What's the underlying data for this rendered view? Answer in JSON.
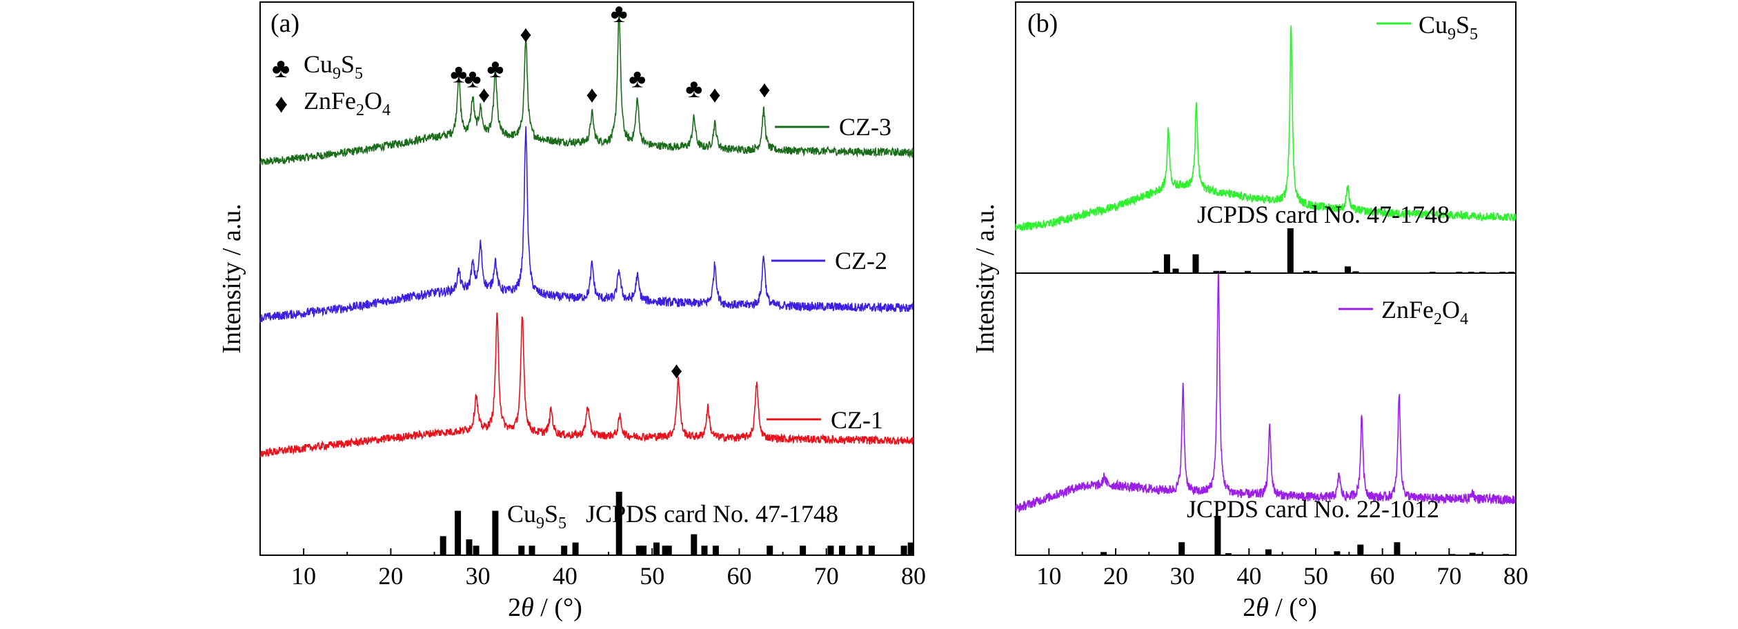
{
  "chart_data": [
    {
      "panel_label": "(a)",
      "type": "line",
      "xlabel": "2θ / (°)",
      "ylabel": "Intensity / a.u.",
      "xlim": [
        5,
        80
      ],
      "xticks": [
        10,
        20,
        30,
        40,
        50,
        60,
        70,
        80
      ],
      "yticks_shown": false,
      "symbol_legend": [
        {
          "symbol": "♣",
          "label": "Cu9S5",
          "sub": "9,5"
        },
        {
          "symbol": "♦",
          "label": "ZnFe2O4",
          "sub": "2,4"
        }
      ],
      "series": [
        {
          "name": "CZ-3",
          "color": "#1a6b1a",
          "offset": 0.68,
          "noise": 0.008,
          "baseline": [
            [
              5,
              0.0
            ],
            [
              15,
              0.02
            ],
            [
              25,
              0.05
            ],
            [
              30,
              0.055
            ],
            [
              40,
              0.04
            ],
            [
              60,
              0.025
            ],
            [
              80,
              0.02
            ]
          ],
          "peaks": [
            [
              27.8,
              0.12
            ],
            [
              29.4,
              0.07
            ],
            [
              30.3,
              0.05
            ],
            [
              32.0,
              0.13
            ],
            [
              35.5,
              0.2
            ],
            [
              43.1,
              0.06
            ],
            [
              46.2,
              0.26
            ],
            [
              48.3,
              0.09
            ],
            [
              54.8,
              0.06
            ],
            [
              57.2,
              0.05
            ],
            [
              62.8,
              0.08
            ]
          ]
        },
        {
          "name": "CZ-2",
          "color": "#3d1ee0",
          "offset": 0.37,
          "noise": 0.009,
          "baseline": [
            [
              5,
              0.0
            ],
            [
              15,
              0.02
            ],
            [
              25,
              0.05
            ],
            [
              30,
              0.055
            ],
            [
              40,
              0.04
            ],
            [
              60,
              0.025
            ],
            [
              80,
              0.02
            ]
          ],
          "peaks": [
            [
              27.8,
              0.04
            ],
            [
              29.4,
              0.05
            ],
            [
              30.3,
              0.09
            ],
            [
              32.0,
              0.06
            ],
            [
              35.5,
              0.33
            ],
            [
              43.1,
              0.07
            ],
            [
              46.2,
              0.06
            ],
            [
              48.3,
              0.05
            ],
            [
              57.2,
              0.08
            ],
            [
              62.8,
              0.1
            ]
          ]
        },
        {
          "name": "CZ-1",
          "color": "#e8101a",
          "offset": 0.1,
          "noise": 0.008,
          "baseline": [
            [
              5,
              0.0
            ],
            [
              15,
              0.02
            ],
            [
              25,
              0.04
            ],
            [
              30,
              0.045
            ],
            [
              40,
              0.035
            ],
            [
              60,
              0.03
            ],
            [
              80,
              0.025
            ]
          ],
          "peaks": [
            [
              29.8,
              0.07
            ],
            [
              32.2,
              0.23
            ],
            [
              35.1,
              0.23
            ],
            [
              38.4,
              0.05
            ],
            [
              42.6,
              0.06
            ],
            [
              46.3,
              0.04
            ],
            [
              53.0,
              0.12
            ],
            [
              56.4,
              0.06
            ],
            [
              62.0,
              0.11
            ]
          ]
        }
      ],
      "markers": [
        {
          "x": 27.8,
          "y": 0.84,
          "symbol": "♣"
        },
        {
          "x": 29.4,
          "y": 0.83,
          "symbol": "♣"
        },
        {
          "x": 30.7,
          "y": 0.8,
          "symbol": "♦"
        },
        {
          "x": 32.0,
          "y": 0.85,
          "symbol": "♣"
        },
        {
          "x": 35.5,
          "y": 0.92,
          "symbol": "♦"
        },
        {
          "x": 43.1,
          "y": 0.8,
          "symbol": "♦"
        },
        {
          "x": 46.2,
          "y": 0.96,
          "symbol": "♣"
        },
        {
          "x": 48.3,
          "y": 0.83,
          "symbol": "♣"
        },
        {
          "x": 54.8,
          "y": 0.81,
          "symbol": "♣"
        },
        {
          "x": 57.2,
          "y": 0.8,
          "symbol": "♦"
        },
        {
          "x": 62.9,
          "y": 0.81,
          "symbol": "♦"
        },
        {
          "x": 52.8,
          "y": 0.25,
          "symbol": "♦"
        }
      ],
      "reference": {
        "label": "Cu9S5   JCPDS card No. 47-1748",
        "label_parts": [
          "Cu",
          "9",
          "S",
          "5",
          "JCPDS card No. 47-1748"
        ],
        "sticks": [
          [
            26.0,
            0.3
          ],
          [
            27.7,
            0.7
          ],
          [
            29.0,
            0.25
          ],
          [
            29.8,
            0.15
          ],
          [
            32.0,
            0.7
          ],
          [
            35.0,
            0.15
          ],
          [
            36.2,
            0.15
          ],
          [
            39.9,
            0.15
          ],
          [
            41.2,
            0.2
          ],
          [
            46.2,
            1.0
          ],
          [
            48.5,
            0.15
          ],
          [
            49.0,
            0.15
          ],
          [
            50.5,
            0.2
          ],
          [
            51.5,
            0.15
          ],
          [
            51.9,
            0.15
          ],
          [
            54.8,
            0.33
          ],
          [
            56.0,
            0.15
          ],
          [
            57.3,
            0.15
          ],
          [
            63.5,
            0.15
          ],
          [
            67.3,
            0.15
          ],
          [
            70.5,
            0.15
          ],
          [
            71.8,
            0.15
          ],
          [
            73.8,
            0.15
          ],
          [
            75.2,
            0.15
          ],
          [
            78.9,
            0.15
          ],
          [
            79.7,
            0.2
          ]
        ]
      }
    },
    {
      "panel_label": "(b)",
      "type": "line",
      "xlabel": "2θ / (°)",
      "ylabel": "Intensity / a.u.",
      "xlim": [
        5,
        80
      ],
      "xticks": [
        10,
        20,
        30,
        40,
        50,
        60,
        70,
        80
      ],
      "yticks_shown": false,
      "subplots": [
        {
          "series": {
            "name": "Cu9S5",
            "name_parts": [
              "Cu",
              "9",
              "S",
              "5"
            ],
            "color": "#2ff02f",
            "noise": 0.02,
            "baseline": [
              [
                5,
                0.0
              ],
              [
                10,
                0.02
              ],
              [
                20,
                0.1
              ],
              [
                27,
                0.18
              ],
              [
                30,
                0.2
              ],
              [
                40,
                0.14
              ],
              [
                50,
                0.1
              ],
              [
                60,
                0.07
              ],
              [
                80,
                0.05
              ]
            ],
            "peaks": [
              [
                27.9,
                0.28
              ],
              [
                32.1,
                0.4
              ],
              [
                46.3,
                0.85
              ],
              [
                54.8,
                0.12
              ]
            ]
          },
          "reference": {
            "label": "JCPDS card No. 47-1748",
            "sticks": [
              [
                26.0,
                0.05
              ],
              [
                27.7,
                0.42
              ],
              [
                29.0,
                0.1
              ],
              [
                32.0,
                0.42
              ],
              [
                35.1,
                0.05
              ],
              [
                36.1,
                0.05
              ],
              [
                39.8,
                0.05
              ],
              [
                46.2,
                1.0
              ],
              [
                48.6,
                0.05
              ],
              [
                49.8,
                0.05
              ],
              [
                54.8,
                0.15
              ],
              [
                56.0,
                0.04
              ],
              [
                67.5,
                0.03
              ],
              [
                71.5,
                0.03
              ],
              [
                73.3,
                0.03
              ],
              [
                75.0,
                0.03
              ],
              [
                78.0,
                0.03
              ],
              [
                79.3,
                0.03
              ]
            ]
          }
        },
        {
          "series": {
            "name": "ZnFe2O4",
            "name_parts": [
              "ZnFe",
              "2",
              "O",
              "4"
            ],
            "color": "#9a1ee8",
            "noise": 0.02,
            "baseline": [
              [
                5,
                0.0
              ],
              [
                10,
                0.05
              ],
              [
                15,
                0.1
              ],
              [
                20,
                0.1
              ],
              [
                30,
                0.07
              ],
              [
                50,
                0.05
              ],
              [
                80,
                0.04
              ]
            ],
            "peaks": [
              [
                18.3,
                0.04
              ],
              [
                30.1,
                0.45
              ],
              [
                35.4,
                0.95
              ],
              [
                43.1,
                0.3
              ],
              [
                53.5,
                0.1
              ],
              [
                56.9,
                0.35
              ],
              [
                62.5,
                0.45
              ],
              [
                73.5,
                0.03
              ]
            ]
          },
          "reference": {
            "label": "JCPDS card No. 22-1012",
            "sticks": [
              [
                18.2,
                0.08
              ],
              [
                29.9,
                0.33
              ],
              [
                35.3,
                1.0
              ],
              [
                36.9,
                0.05
              ],
              [
                42.9,
                0.15
              ],
              [
                53.2,
                0.1
              ],
              [
                56.7,
                0.27
              ],
              [
                62.2,
                0.33
              ],
              [
                70.5,
                0.03
              ],
              [
                73.5,
                0.06
              ],
              [
                74.5,
                0.03
              ],
              [
                78.5,
                0.03
              ]
            ]
          }
        }
      ]
    }
  ]
}
